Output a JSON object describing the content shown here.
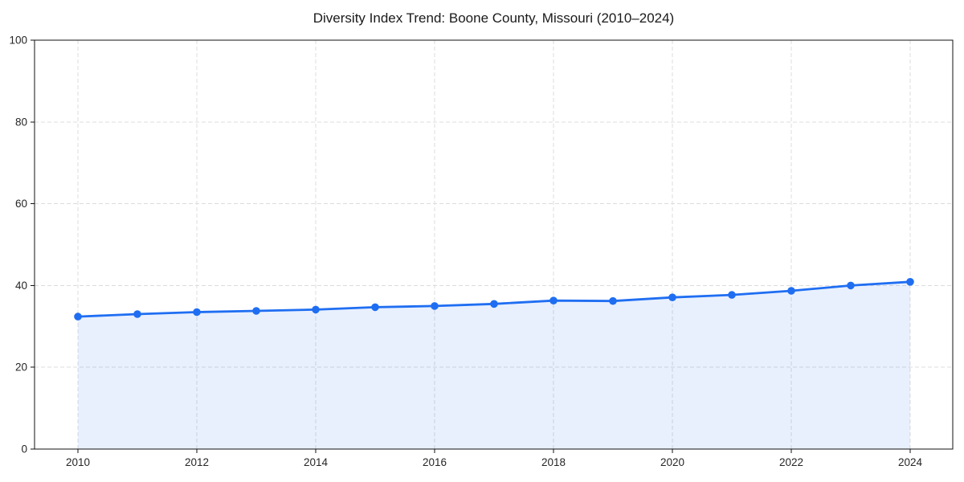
{
  "figure": {
    "background": "#ffffff"
  },
  "chart_data": {
    "type": "line",
    "title": "Diversity Index Trend: Boone County, Missouri (2010–2024)",
    "series_name": "Diversity Index",
    "x": [
      2010,
      2011,
      2012,
      2013,
      2014,
      2015,
      2016,
      2017,
      2018,
      2019,
      2020,
      2021,
      2022,
      2023,
      2024
    ],
    "values": [
      32.4,
      33.0,
      33.5,
      33.8,
      34.1,
      34.7,
      35.0,
      35.5,
      36.3,
      36.2,
      37.1,
      37.7,
      38.7,
      40.0,
      40.9
    ],
    "xlabel": "",
    "ylabel": "",
    "ylim": [
      0,
      100
    ],
    "xticks": [
      2010,
      2012,
      2014,
      2016,
      2018,
      2020,
      2022,
      2024
    ],
    "xtick_labels": [
      "2010",
      "2012",
      "2014",
      "2016",
      "2018",
      "2020",
      "2022",
      "2024"
    ],
    "yticks": [
      0,
      20,
      40,
      60,
      80,
      100
    ],
    "ytick_labels": [
      "0",
      "20",
      "40",
      "60",
      "80",
      "100"
    ],
    "grid": true,
    "grid_style": "dashed",
    "legend": false,
    "marker": "circle",
    "area_fill": true,
    "style": {
      "line_color": "#1f6ef2",
      "marker_color": "#1f6ef2",
      "fill_color": "#1f6ef2",
      "fill_opacity": 0.1,
      "grid_color": "#dcdcdc",
      "spine_color": "#111111",
      "tick_label_color": "#262626",
      "title_color": "#1a1a1a"
    }
  }
}
